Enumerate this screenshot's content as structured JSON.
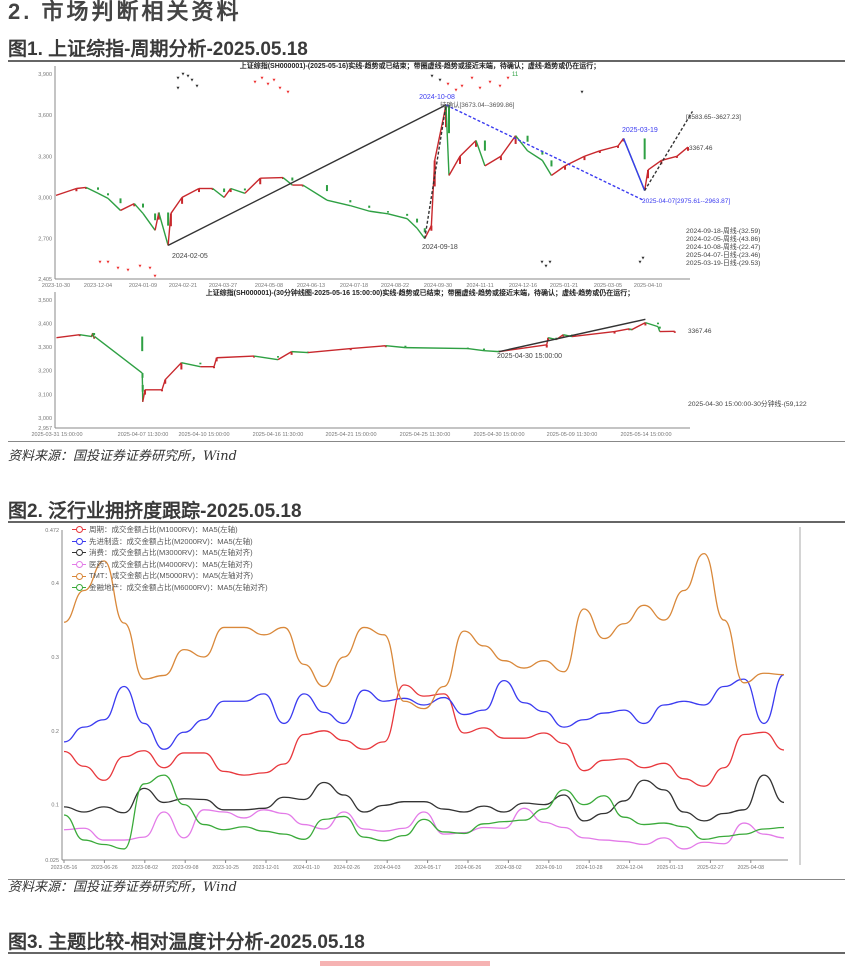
{
  "section_heading": "2. 市场判断相关资料",
  "figures": [
    {
      "title": "图1. 上证综指-周期分析-2025.05.18",
      "source": "资料来源：国投证券证券研究所，Wind"
    },
    {
      "title": "图2. 泛行业拥挤度跟踪-2025.05.18",
      "source": "资料来源：国投证券证券研究所，Wind"
    },
    {
      "title": "图3. 主题比较-相对温度计分析-2025.05.18"
    }
  ],
  "chart_data": [
    {
      "type": "candlestick",
      "title": "上证综指(SH000001)-(2025-05-16)实线-趋势或已结束；带圈虚线-趋势或接近末端，待确认；虚线-趋势或仍在运行；",
      "ylim": [
        2405,
        3900
      ],
      "y_ticks": [
        "3,900",
        "3,600",
        "3,300",
        "3,000",
        "2,700",
        "2,405"
      ],
      "y_tick_values": [
        3900,
        3600,
        3300,
        3000,
        2700,
        2405
      ],
      "x_ticks": [
        "2023-10-30",
        "2023-12-04",
        "2024-01-09",
        "2024-02-21",
        "2024-03-27",
        "2024-05-08",
        "2024-06-13",
        "2024-07-18",
        "2024-08-22",
        "2024-09-30",
        "2024-11-11",
        "2024-12-16",
        "2025-01-21",
        "2025-03-05",
        "2025-04-10"
      ],
      "close": [
        [
          "2023-10-30",
          3015
        ],
        [
          "2023-11-16",
          3065
        ],
        [
          "2023-11-24",
          3073
        ],
        [
          "2023-12-04",
          3030
        ],
        [
          "2023-12-12",
          2993
        ],
        [
          "2023-12-22",
          2905
        ],
        [
          "2024-01-02",
          2955
        ],
        [
          "2024-01-09",
          2883
        ],
        [
          "2024-01-22",
          2760
        ],
        [
          "2024-01-26",
          2890
        ],
        [
          "2024-02-05",
          2650
        ],
        [
          "2024-02-08",
          2883
        ],
        [
          "2024-02-20",
          3000
        ],
        [
          "2024-03-06",
          3065
        ],
        [
          "2024-03-18",
          3065
        ],
        [
          "2024-03-28",
          3000
        ],
        [
          "2024-04-03",
          3065
        ],
        [
          "2024-04-16",
          3030
        ],
        [
          "2024-04-30",
          3140
        ],
        [
          "2024-05-20",
          3145
        ],
        [
          "2024-05-28",
          3090
        ],
        [
          "2024-06-06",
          3090
        ],
        [
          "2024-06-26",
          2980
        ],
        [
          "2024-07-15",
          2940
        ],
        [
          "2024-07-31",
          2900
        ],
        [
          "2024-08-16",
          2880
        ],
        [
          "2024-09-02",
          2845
        ],
        [
          "2024-09-11",
          2775
        ],
        [
          "2024-09-18",
          2700
        ],
        [
          "2024-09-24",
          2795
        ],
        [
          "2024-09-27",
          3270
        ],
        [
          "2024-10-08",
          3674
        ],
        [
          "2024-10-11",
          3160
        ],
        [
          "2024-10-22",
          3300
        ],
        [
          "2024-11-07",
          3415
        ],
        [
          "2024-11-15",
          3230
        ],
        [
          "2024-11-28",
          3300
        ],
        [
          "2024-12-10",
          3450
        ],
        [
          "2024-12-20",
          3340
        ],
        [
          "2025-01-02",
          3270
        ],
        [
          "2025-01-10",
          3160
        ],
        [
          "2025-01-22",
          3230
        ],
        [
          "2025-02-10",
          3300
        ],
        [
          "2025-02-25",
          3340
        ],
        [
          "2025-03-14",
          3375
        ],
        [
          "2025-03-19",
          3430
        ],
        [
          "2025-04-07",
          3050
        ],
        [
          "2025-04-10",
          3200
        ],
        [
          "2025-04-22",
          3270
        ],
        [
          "2025-05-06",
          3300
        ],
        [
          "2025-05-16",
          3367
        ]
      ],
      "trend_lines": [
        {
          "from": [
            "2024-02-05",
            2650
          ],
          "to": [
            "2024-10-08",
            3674
          ],
          "style": "solid",
          "color": "#333333"
        },
        {
          "from": [
            "2024-09-18",
            2700
          ],
          "to": [
            "2024-10-08",
            3674
          ],
          "style": "dashed",
          "color": "#333333"
        },
        {
          "from": [
            "2024-10-08",
            3674
          ],
          "to": [
            "2025-04-07",
            2975
          ],
          "style": "dashed",
          "color": "#3b3bf0"
        },
        {
          "from": [
            "2025-03-19",
            3430
          ],
          "to": [
            "2025-04-07",
            3050
          ],
          "style": "solid",
          "color": "#3b3bf0"
        },
        {
          "from": [
            "2025-04-07",
            3050
          ],
          "to": [
            "2025-05-20",
            3627
          ],
          "style": "dashed",
          "color": "#333333"
        }
      ],
      "labels": {
        "low_2024_02_05": "2024-02-05",
        "low_2024_09_18": "2024-09-18",
        "high_2024_10_08": "2024-10-08",
        "pending_range": "待确认[3673.04--3699.86]",
        "high_2025_03_19": "2025-03-19",
        "low_2025_04_07": "2025-04-07[2975.61--2963.87]",
        "target_range": "[3583.65--3627.23]",
        "last_price": "3367.46"
      },
      "cycle_notes": [
        "2024-09-18-周线-(32.59)",
        "2024-02-05-周线-(43.86)",
        "2024-10-08-周线-(22.47)",
        "2025-04-07-日线-(23.46)",
        "2025-03-19-日线-(29.53)"
      ],
      "peak_marker_label": "11"
    },
    {
      "type": "candlestick",
      "title": "上证综指(SH000001)-(30分钟线图-2025-05-16 15:00:00)实线-趋势或已结束；带圈虚线-趋势或接近末端，待确认；虚线-趋势或仍在运行；",
      "ylim": [
        2957,
        3500
      ],
      "y_ticks": [
        "3,500",
        "3,400",
        "3,300",
        "3,200",
        "3,100",
        "3,000",
        "2,957"
      ],
      "y_tick_values": [
        3500,
        3400,
        3300,
        3200,
        3100,
        3000,
        2957
      ],
      "x_ticks": [
        "2025-03-31 15:00:00",
        "2025-04-07 11:30:00",
        "2025-04-10 15:00:00",
        "2025-04-16 11:30:00",
        "2025-04-21 15:00:00",
        "2025-04-25 11:30:00",
        "2025-04-30 15:00:00",
        "2025-05-09 11:30:00",
        "2025-05-14 15:00:00"
      ],
      "close": [
        [
          "2025-03-31 14:00",
          3340
        ],
        [
          "2025-04-02 10:30",
          3353
        ],
        [
          "2025-04-03 10:00",
          3345
        ],
        [
          "2025-04-03 11:30",
          3360
        ],
        [
          "2025-04-03 14:00",
          3336
        ],
        [
          "2025-04-03 15:00",
          3345
        ],
        [
          "2025-04-07 10:00",
          3190
        ],
        [
          "2025-04-07 10:30",
          3140
        ],
        [
          "2025-04-07 11:00",
          3068
        ],
        [
          "2025-04-07 14:00",
          3119
        ],
        [
          "2025-04-08 11:00",
          3119
        ],
        [
          "2025-04-08 15:00",
          3162
        ],
        [
          "2025-04-09 11:00",
          3234
        ],
        [
          "2025-04-10 10:30",
          3217
        ],
        [
          "2025-04-11 10:00",
          3217
        ],
        [
          "2025-04-11 15:00",
          3255
        ],
        [
          "2025-04-14 14:00",
          3262
        ],
        [
          "2025-04-16 11:30",
          3247
        ],
        [
          "2025-04-17 10:30",
          3281
        ],
        [
          "2025-04-18 14:00",
          3277
        ],
        [
          "2025-04-21 14:30",
          3294
        ],
        [
          "2025-04-23 10:30",
          3306
        ],
        [
          "2025-04-24 11:00",
          3298
        ],
        [
          "2025-04-28 11:00",
          3294
        ],
        [
          "2025-04-29 14:00",
          3285
        ],
        [
          "2025-04-30 15:00",
          3281
        ],
        [
          "2025-05-06 10:00",
          3310
        ],
        [
          "2025-05-06 14:00",
          3340
        ],
        [
          "2025-05-07 14:00",
          3332
        ],
        [
          "2025-05-08 10:00",
          3353
        ],
        [
          "2025-05-09 11:30",
          3345
        ],
        [
          "2025-05-12 10:30",
          3366
        ],
        [
          "2025-05-13 11:00",
          3378
        ],
        [
          "2025-05-13 15:00",
          3374
        ],
        [
          "2025-05-14 14:00",
          3404
        ],
        [
          "2025-05-15 11:00",
          3387
        ],
        [
          "2025-05-15 14:00",
          3366
        ],
        [
          "2025-05-16 15:00",
          3367
        ]
      ],
      "trend_lines": [
        {
          "from": [
            "2025-04-30 15:00",
            3281
          ],
          "to": [
            "2025-05-14 14:00",
            3418
          ],
          "style": "solid",
          "color": "#333333"
        }
      ],
      "labels": {
        "low_label": "2025-04-30 15:00:00",
        "last_price": "3367.46",
        "cycle_note": "2025-04-30 15:00:00-30分钟线-(59,122"
      }
    },
    {
      "type": "line",
      "ylim": [
        0.025,
        0.472
      ],
      "y_ticks": [
        "0.472",
        "0.4",
        "0.3",
        "0.2",
        "0.1",
        "0.025"
      ],
      "y_tick_values": [
        0.472,
        0.4,
        0.3,
        0.2,
        0.1,
        0.025
      ],
      "x_ticks": [
        "2023-05-16",
        "2023-06-26",
        "2023-08-02",
        "2023-09-08",
        "2023-10-25",
        "2023-12-01",
        "2024-01-10",
        "2024-02-26",
        "2024-04-03",
        "2024-05-17",
        "2024-06-26",
        "2024-08-02",
        "2024-09-10",
        "2024-10-28",
        "2024-12-04",
        "2025-01-13",
        "2025-02-27",
        "2025-04-08"
      ],
      "grid": false,
      "legend_position": "top-left",
      "series": [
        {
          "name": "周期：成交金额占比(M1000RV)：MA5(左轴)",
          "color": "#e8383d",
          "values": [
            0.172,
            0.152,
            0.133,
            0.165,
            0.173,
            0.15,
            0.17,
            0.17,
            0.145,
            0.14,
            0.143,
            0.155,
            0.195,
            0.2,
            0.187,
            0.175,
            0.185,
            0.262,
            0.247,
            0.25,
            0.197,
            0.204,
            0.19,
            0.19,
            0.197,
            0.183,
            0.146,
            0.16,
            0.162,
            0.15,
            0.156,
            0.135,
            0.125,
            0.15,
            0.195,
            0.198,
            0.174
          ]
        },
        {
          "name": "先进制造：成交金额占比(M2000RV)：MA5(左轴)",
          "color": "#3b3bf0",
          "values": [
            0.185,
            0.205,
            0.215,
            0.26,
            0.21,
            0.175,
            0.198,
            0.215,
            0.24,
            0.24,
            0.25,
            0.21,
            0.25,
            0.225,
            0.21,
            0.255,
            0.24,
            0.244,
            0.235,
            0.245,
            0.222,
            0.228,
            0.268,
            0.238,
            0.226,
            0.205,
            0.215,
            0.224,
            0.228,
            0.21,
            0.235,
            0.24,
            0.235,
            0.26,
            0.27,
            0.21,
            0.276
          ]
        },
        {
          "name": "消费：成交金额占比(M3000RV)：MA5(左轴对齐)",
          "color": "#333333",
          "values": [
            0.097,
            0.09,
            0.097,
            0.089,
            0.122,
            0.103,
            0.108,
            0.107,
            0.093,
            0.093,
            0.095,
            0.11,
            0.107,
            0.13,
            0.113,
            0.09,
            0.099,
            0.104,
            0.104,
            0.094,
            0.09,
            0.098,
            0.09,
            0.102,
            0.1,
            0.113,
            0.078,
            0.088,
            0.105,
            0.133,
            0.12,
            0.09,
            0.078,
            0.088,
            0.093,
            0.14,
            0.103
          ]
        },
        {
          "name": "医药：成交金额占比(M4000RV)：MA5(左轴对齐)",
          "color": "#e37be8",
          "values": [
            0.066,
            0.068,
            0.052,
            0.052,
            0.056,
            0.09,
            0.055,
            0.093,
            0.09,
            0.082,
            0.093,
            0.088,
            0.073,
            0.067,
            0.09,
            0.067,
            0.064,
            0.068,
            0.09,
            0.06,
            0.062,
            0.069,
            0.068,
            0.095,
            0.076,
            0.069,
            0.055,
            0.052,
            0.05,
            0.046,
            0.055,
            0.04,
            0.049,
            0.047,
            0.075,
            0.06,
            0.055
          ]
        },
        {
          "name": "TMT：成交金额占比(M5000RV)：MA5(左轴对齐)",
          "color": "#d9883a",
          "values": [
            0.347,
            0.39,
            0.43,
            0.346,
            0.27,
            0.275,
            0.31,
            0.3,
            0.34,
            0.34,
            0.33,
            0.34,
            0.29,
            0.26,
            0.3,
            0.34,
            0.33,
            0.24,
            0.23,
            0.26,
            0.335,
            0.315,
            0.295,
            0.285,
            0.295,
            0.28,
            0.365,
            0.325,
            0.345,
            0.37,
            0.35,
            0.39,
            0.44,
            0.35,
            0.265,
            0.278,
            0.276
          ]
        },
        {
          "name": "金融地产：成交金额占比(M6000RV)：MA5(左轴对齐)",
          "color": "#3aaa3a",
          "values": [
            0.086,
            0.052,
            0.046,
            0.04,
            0.128,
            0.14,
            0.1,
            0.073,
            0.066,
            0.07,
            0.064,
            0.06,
            0.053,
            0.08,
            0.084,
            0.056,
            0.051,
            0.058,
            0.08,
            0.063,
            0.061,
            0.074,
            0.077,
            0.079,
            0.094,
            0.12,
            0.1,
            0.112,
            0.083,
            0.073,
            0.075,
            0.07,
            0.053,
            0.057,
            0.06,
            0.067,
            0.069
          ]
        }
      ]
    }
  ],
  "colors": {
    "up": "#c8282d",
    "down": "#2ea043",
    "axis": "#888888"
  }
}
